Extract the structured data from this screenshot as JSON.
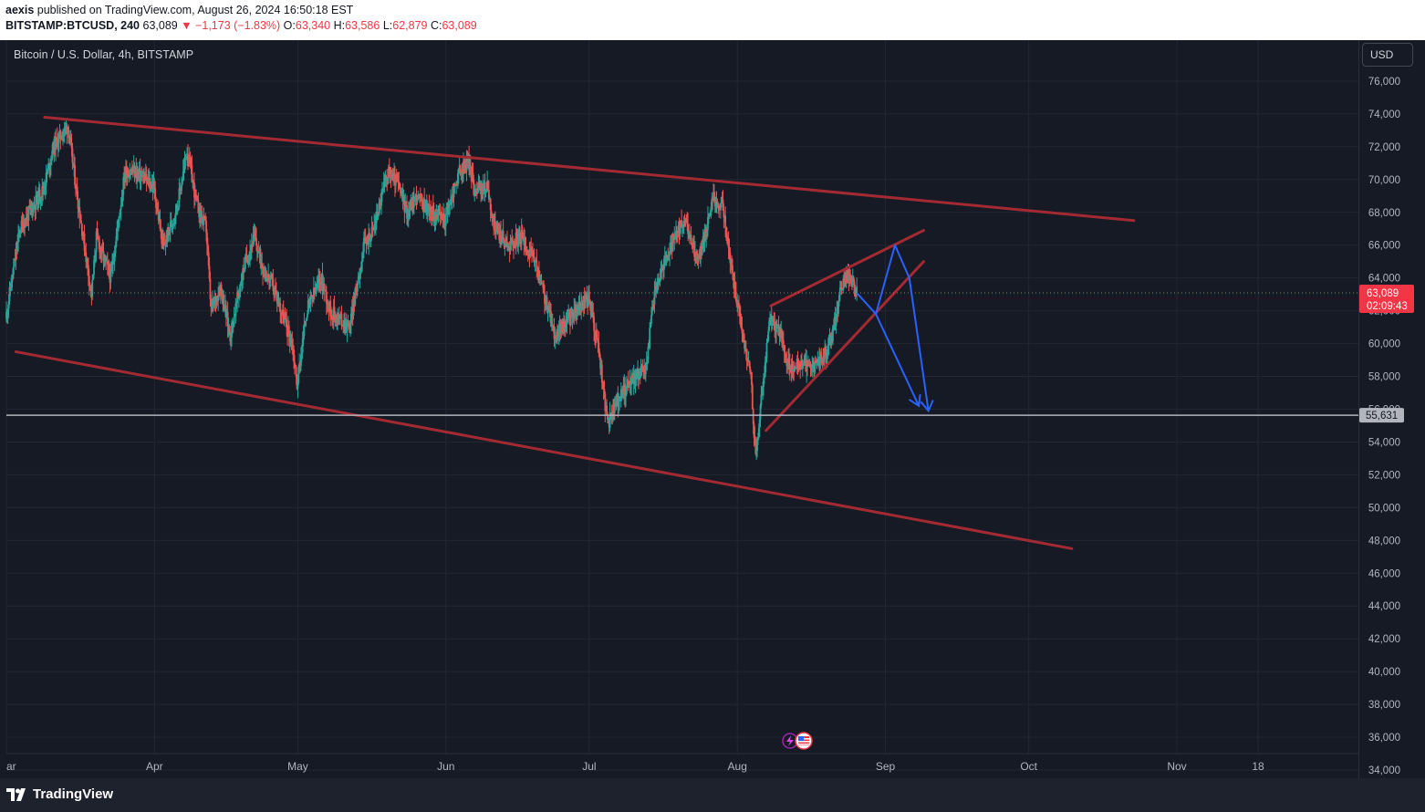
{
  "header": {
    "author": "aexis",
    "published": "published on TradingView.com, August 26, 2024 16:50:18 EST",
    "symbol": "BITSTAMP:BTCUSD, 240",
    "last": "63,089",
    "change": "−1,173 (−1.83%)",
    "o_label": "O:",
    "o_value": "63,340",
    "h_label": "H:",
    "h_value": "63,586",
    "l_label": "L:",
    "l_value": "62,879",
    "c_label": "C:",
    "c_value": "63,089"
  },
  "legend": {
    "title": "Bitcoin / U.S. Dollar, 4h, BITSTAMP"
  },
  "currency_button": "USD",
  "price_tag": {
    "price": "63,089",
    "countdown": "02:09:43",
    "color": "#f23645"
  },
  "level_tag": {
    "price": "55,631",
    "color": "#b2b5be"
  },
  "footer": {
    "logo_text": "TradingView"
  },
  "colors": {
    "up": "#26a69a",
    "down": "#ef5350",
    "trendline": "#a32a33",
    "projection": "#2962ff",
    "background": "#161a25"
  },
  "chart_data": {
    "type": "candlestick",
    "symbol": "BITSTAMP:BTCUSD",
    "interval": "4h",
    "ylim": [
      33500,
      78500
    ],
    "y_ticks": [
      34000,
      36000,
      38000,
      40000,
      42000,
      44000,
      46000,
      48000,
      50000,
      52000,
      54000,
      56000,
      58000,
      60000,
      62000,
      64000,
      66000,
      68000,
      70000,
      72000,
      74000,
      76000
    ],
    "y_tick_labels": [
      "34,000",
      "36,000",
      "38,000",
      "40,000",
      "42,000",
      "44,000",
      "46,000",
      "48,000",
      "50,000",
      "52,000",
      "54,000",
      "56,000",
      "58,000",
      "60,000",
      "62,000",
      "64,000",
      "66,000",
      "68,000",
      "70,000",
      "72,000",
      "74,000",
      "76,000"
    ],
    "x_range": [
      "2024-03-01",
      "2024-12-09"
    ],
    "x_ticks": [
      {
        "date": "2024-03-01",
        "label": "ar"
      },
      {
        "date": "2024-04-01",
        "label": "Apr"
      },
      {
        "date": "2024-05-01",
        "label": "May"
      },
      {
        "date": "2024-06-01",
        "label": "Jun"
      },
      {
        "date": "2024-07-01",
        "label": "Jul"
      },
      {
        "date": "2024-08-01",
        "label": "Aug"
      },
      {
        "date": "2024-09-01",
        "label": "Sep"
      },
      {
        "date": "2024-10-01",
        "label": "Oct"
      },
      {
        "date": "2024-11-01",
        "label": "Nov"
      },
      {
        "date": "2024-11-18",
        "label": "18"
      }
    ],
    "price_path": [
      [
        "2024-03-01",
        61500
      ],
      [
        "2024-03-04",
        67000
      ],
      [
        "2024-03-09",
        69500
      ],
      [
        "2024-03-11",
        72000
      ],
      [
        "2024-03-14",
        73300
      ],
      [
        "2024-03-16",
        69000
      ],
      [
        "2024-03-19",
        63000
      ],
      [
        "2024-03-20",
        66500
      ],
      [
        "2024-03-23",
        64000
      ],
      [
        "2024-03-26",
        70500
      ],
      [
        "2024-03-28",
        70500
      ],
      [
        "2024-04-01",
        69600
      ],
      [
        "2024-04-03",
        65800
      ],
      [
        "2024-04-06",
        68500
      ],
      [
        "2024-04-08",
        71800
      ],
      [
        "2024-04-10",
        68500
      ],
      [
        "2024-04-12",
        67000
      ],
      [
        "2024-04-13",
        62000
      ],
      [
        "2024-04-15",
        63500
      ],
      [
        "2024-04-17",
        60500
      ],
      [
        "2024-04-20",
        64800
      ],
      [
        "2024-04-22",
        66500
      ],
      [
        "2024-04-24",
        64500
      ],
      [
        "2024-04-26",
        63500
      ],
      [
        "2024-04-30",
        60000
      ],
      [
        "2024-05-01",
        57500
      ],
      [
        "2024-05-03",
        62000
      ],
      [
        "2024-05-06",
        64000
      ],
      [
        "2024-05-08",
        62000
      ],
      [
        "2024-05-12",
        61000
      ],
      [
        "2024-05-15",
        66000
      ],
      [
        "2024-05-17",
        67000
      ],
      [
        "2024-05-20",
        70500
      ],
      [
        "2024-05-22",
        69800
      ],
      [
        "2024-05-24",
        68000
      ],
      [
        "2024-05-26",
        69000
      ],
      [
        "2024-05-29",
        68000
      ],
      [
        "2024-06-01",
        67600
      ],
      [
        "2024-06-04",
        70500
      ],
      [
        "2024-06-06",
        71100
      ],
      [
        "2024-06-07",
        69500
      ],
      [
        "2024-06-10",
        69500
      ],
      [
        "2024-06-11",
        67300
      ],
      [
        "2024-06-14",
        66000
      ],
      [
        "2024-06-17",
        66500
      ],
      [
        "2024-06-20",
        64800
      ],
      [
        "2024-06-24",
        60500
      ],
      [
        "2024-06-27",
        61500
      ],
      [
        "2024-07-01",
        62800
      ],
      [
        "2024-07-03",
        60000
      ],
      [
        "2024-07-05",
        55000
      ],
      [
        "2024-07-07",
        56500
      ],
      [
        "2024-07-10",
        57800
      ],
      [
        "2024-07-13",
        58500
      ],
      [
        "2024-07-15",
        63500
      ],
      [
        "2024-07-17",
        65000
      ],
      [
        "2024-07-21",
        67500
      ],
      [
        "2024-07-24",
        65000
      ],
      [
        "2024-07-27",
        68800
      ],
      [
        "2024-07-29",
        68500
      ],
      [
        "2024-07-31",
        64500
      ],
      [
        "2024-08-02",
        61000
      ],
      [
        "2024-08-04",
        58000
      ],
      [
        "2024-08-05",
        53000
      ],
      [
        "2024-08-06",
        56000
      ],
      [
        "2024-08-08",
        61500
      ],
      [
        "2024-08-10",
        60800
      ],
      [
        "2024-08-12",
        58500
      ],
      [
        "2024-08-14",
        58800
      ],
      [
        "2024-08-16",
        58500
      ],
      [
        "2024-08-19",
        59000
      ],
      [
        "2024-08-21",
        60500
      ],
      [
        "2024-08-23",
        63500
      ],
      [
        "2024-08-24",
        64200
      ],
      [
        "2024-08-25",
        64100
      ],
      [
        "2024-08-26",
        63089
      ]
    ],
    "lines": [
      {
        "type": "trendline",
        "from": [
          "2024-03-09",
          73800
        ],
        "to": [
          "2024-10-23",
          67500
        ]
      },
      {
        "type": "trendline",
        "from": [
          "2024-03-03",
          59500
        ],
        "to": [
          "2024-10-10",
          47500
        ]
      },
      {
        "type": "trendline",
        "from": [
          "2024-08-08",
          62300
        ],
        "to": [
          "2024-09-09",
          66900
        ]
      },
      {
        "type": "trendline",
        "from": [
          "2024-08-07",
          54700
        ],
        "to": [
          "2024-09-09",
          65000
        ]
      },
      {
        "type": "horizontal",
        "price": 55631
      }
    ],
    "projection": [
      {
        "type": "polyline",
        "points": [
          [
            "2024-08-26",
            63089
          ],
          [
            "2024-08-30",
            61800
          ],
          [
            "2024-09-03",
            66000
          ],
          [
            "2024-09-06",
            64000
          ],
          [
            "2024-09-10",
            55900
          ]
        ]
      },
      {
        "type": "arrow",
        "from": [
          "2024-08-30",
          61800
        ],
        "to": [
          "2024-09-08",
          56200
        ]
      }
    ]
  }
}
